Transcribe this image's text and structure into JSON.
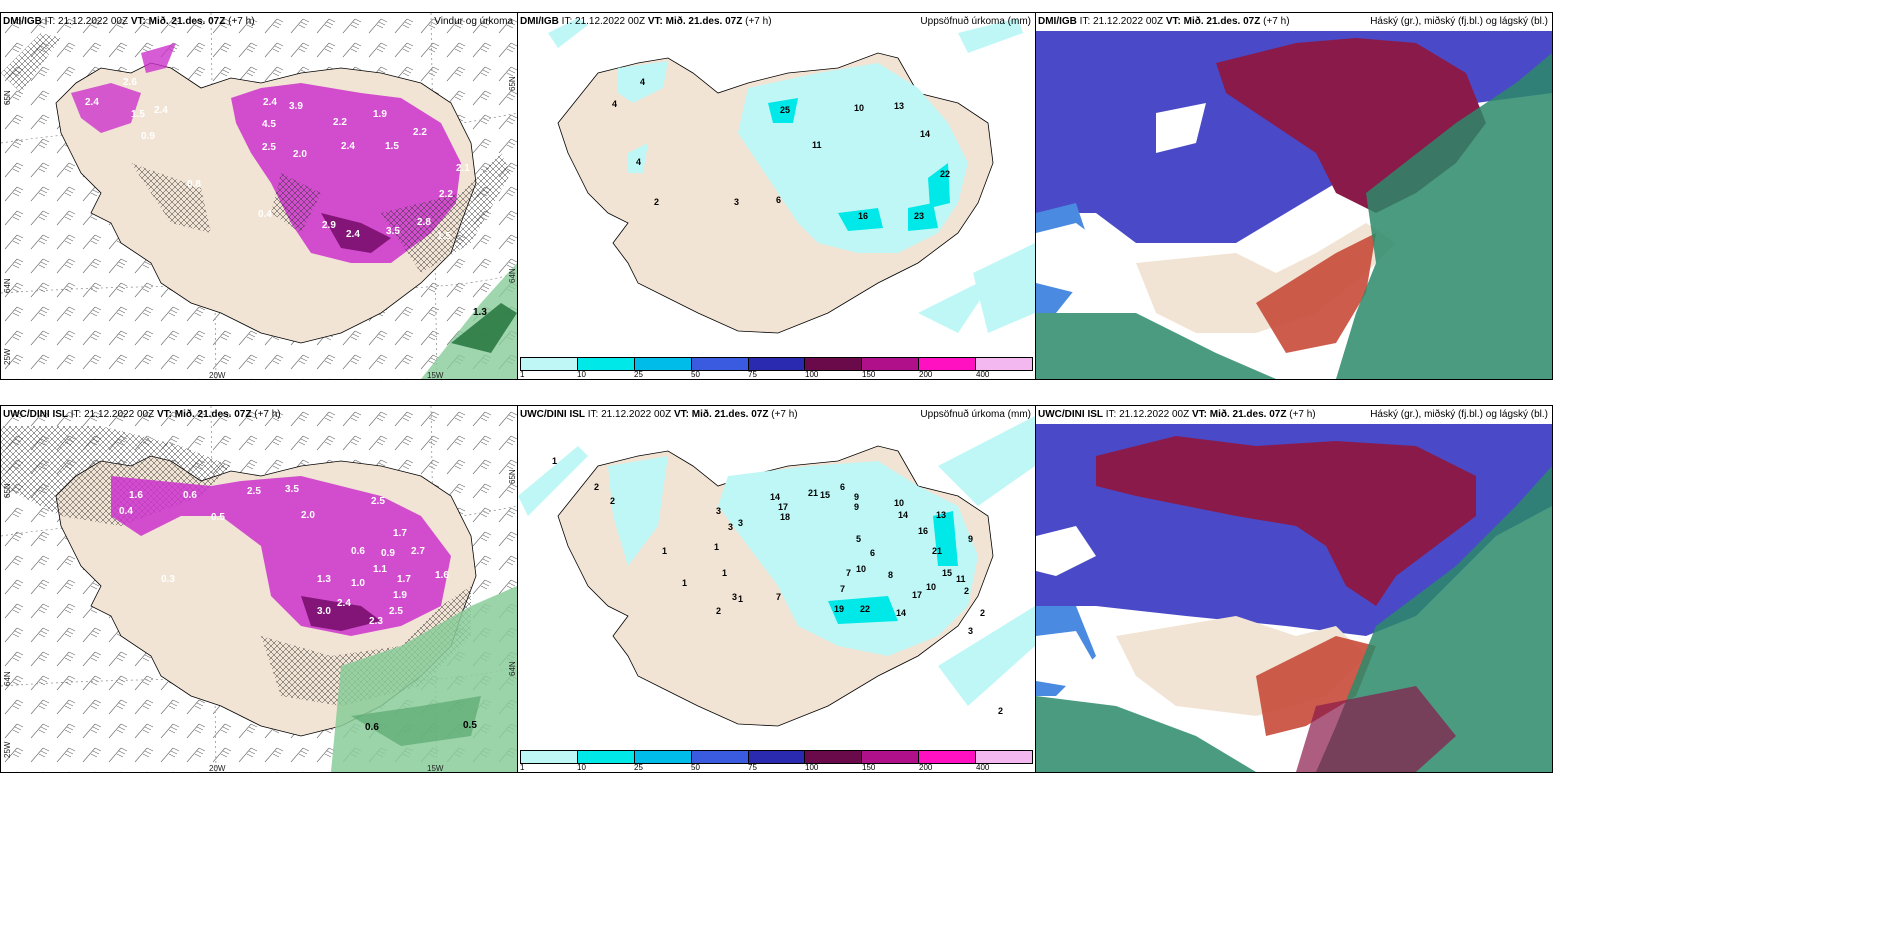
{
  "rows": [
    {
      "prefix": "DMI/IGB",
      "panels": [
        {
          "it": "IT: 21.12.2022 00Z",
          "vt_label": "VT: Mið. 21.des. 07Z",
          "lead": "(+7 h)",
          "title": "Vindur og úrkoma",
          "map_labels": [
            "2.6",
            "2.4",
            "1.5",
            "2.4",
            "0.9",
            "2.4",
            "3.9",
            "4.5",
            "2.5",
            "2.0",
            "2.2",
            "1.9",
            "2.4",
            "1.5",
            "2.2",
            "2.1",
            "2.2",
            "0.8",
            "0.4",
            "2.9",
            "2.4",
            "3.5",
            "2.8",
            "1.5",
            "1.3"
          ],
          "grid_labels": {
            "lon1": "20W",
            "lon2": "15W",
            "lat_top_left": "65N",
            "lat_top_right": "65N",
            "lat_mid_left": "64N",
            "lat_mid_right": "64N",
            "lat_bottom": "25W"
          }
        },
        {
          "it": "IT: 21.12.2022 00Z",
          "vt_label": "VT: Mið. 21.des. 07Z",
          "lead": "(+7 h)",
          "title": "Uppsöfnuð úrkoma (mm)",
          "map_labels": [
            "4",
            "4",
            "4",
            "2",
            "25",
            "11",
            "10",
            "13",
            "14",
            "22",
            "3",
            "6",
            "16",
            "23"
          ],
          "legend_labels": [
            "1",
            "10",
            "25",
            "50",
            "75",
            "100",
            "150",
            "200",
            "400"
          ]
        },
        {
          "it": "IT: 21.12.2022 00Z",
          "vt_label": "VT: Mið. 21.des. 07Z",
          "lead": "(+7 h)",
          "title": "Háský (gr.), miðský (fj.bl.) og lágský (bl.)"
        }
      ]
    },
    {
      "prefix": "UWC/DINI ISL",
      "panels": [
        {
          "it": "IT: 21.12.2022 00Z",
          "vt_label": "VT: Mið. 21.des. 07Z",
          "lead": "(+7 h)",
          "title": "",
          "map_labels": [
            "1.6",
            "0.6",
            "2.5",
            "3.5",
            "2.0",
            "2.5",
            "0.5",
            "0.4",
            "1.7",
            "0.3",
            "2.7",
            "0.9",
            "1.3",
            "1.0",
            "0.6",
            "1.7",
            "1.6",
            "1.1",
            "1.9",
            "3.0",
            "2.4",
            "2.5",
            "2.3",
            "0.6",
            "0.5"
          ],
          "grid_labels": {
            "lon1": "20W",
            "lon2": "15W",
            "lat_top_left": "65N",
            "lat_top_right": "65N",
            "lat_mid_left": "64N",
            "lat_mid_right": "64N",
            "lat_bottom": "25W"
          }
        },
        {
          "it": "IT: 21.12.2022 00Z",
          "vt_label": "VT: Mið. 21.des. 07Z",
          "lead": "(+7 h)",
          "title": "Uppsöfnuð úrkoma (mm)",
          "map_labels": [
            "1",
            "2",
            "2",
            "3",
            "3",
            "3",
            "1",
            "1",
            "1",
            "1",
            "14",
            "17",
            "18",
            "21",
            "15",
            "6",
            "9",
            "9",
            "10",
            "14",
            "13",
            "16",
            "21",
            "15",
            "11",
            "5",
            "6",
            "7",
            "8",
            "10",
            "7",
            "17",
            "10",
            "19",
            "22",
            "14",
            "3",
            "1",
            "7",
            "2",
            "2",
            "2",
            "3",
            "2",
            "9"
          ],
          "legend_labels": [
            "1",
            "10",
            "25",
            "50",
            "75",
            "100",
            "150",
            "200",
            "400"
          ]
        },
        {
          "it": "IT: 21.12.2022 00Z",
          "vt_label": "VT: Mið. 21.des. 07Z",
          "lead": "(+7 h)",
          "title": "Háský (gr.), miðský (fj.bl.) og lágský (bl.)"
        }
      ]
    }
  ],
  "colors": {
    "land": "#f2e4d4",
    "precip_swatches": [
      "#bff7f7",
      "#00e8e8",
      "#00bce8",
      "#3a5be0",
      "#2a2ab0",
      "#6b0a4a",
      "#b0108a",
      "#ff10c0",
      "#f4b8f0"
    ],
    "wind_precip": "#cc33cc",
    "wind_precip_dark": "#7a1070",
    "green": "#44aa66",
    "cloud_high": "#2c8a6a",
    "cloud_mid": "#4a4ac8",
    "cloud_low": "#8a1a4a",
    "cloud_low_red": "#c84a3a"
  }
}
